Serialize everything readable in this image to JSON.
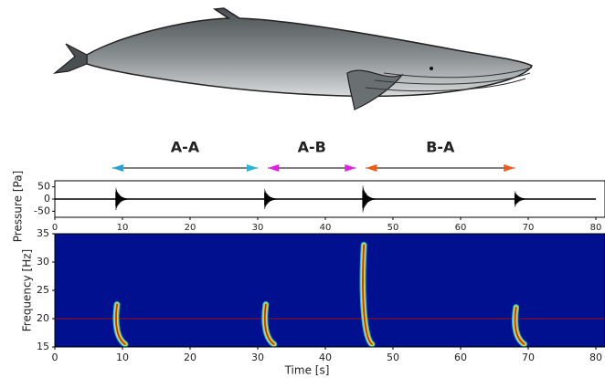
{
  "intervals": {
    "type": "interval-arrows",
    "items": [
      {
        "label": "A-A",
        "start": 8.5,
        "end": 30,
        "color_start": "#2a9fd6",
        "color_end": "#2ab5d6"
      },
      {
        "label": "A-B",
        "start": 31.5,
        "end": 44.5,
        "color_start": "#e020e0",
        "color_end": "#e020e0"
      },
      {
        "label": "B-A",
        "start": 46,
        "end": 68,
        "color_start": "#f05a14",
        "color_end": "#f05a14"
      }
    ]
  },
  "chart_data": [
    {
      "type": "waveform",
      "ylabel": "Pressure [Pa]",
      "xlim": [
        0,
        80
      ],
      "xticks": [
        0,
        10,
        20,
        30,
        40,
        50,
        60,
        70,
        80
      ],
      "ylim": [
        -75,
        75
      ],
      "yticks": [
        -50,
        0,
        50
      ],
      "color": "#000000",
      "x": [
        9,
        31,
        45.5,
        68
      ],
      "values": [
        50,
        45,
        60,
        35
      ]
    },
    {
      "type": "spectrogram",
      "xlabel": "Time [s]",
      "ylabel": "Frequency [Hz]",
      "xlim": [
        0,
        80
      ],
      "xticks": [
        0,
        10,
        20,
        30,
        40,
        50,
        60,
        70,
        80
      ],
      "ylim": [
        15,
        35
      ],
      "yticks": [
        15,
        20,
        25,
        30,
        35
      ],
      "background": "#00108f",
      "ref_line": 20,
      "ref_color": "#a01010",
      "x": [
        9.2,
        31.2,
        45.7,
        68.2
      ],
      "values": [
        22.5,
        22.5,
        33,
        22
      ]
    }
  ]
}
